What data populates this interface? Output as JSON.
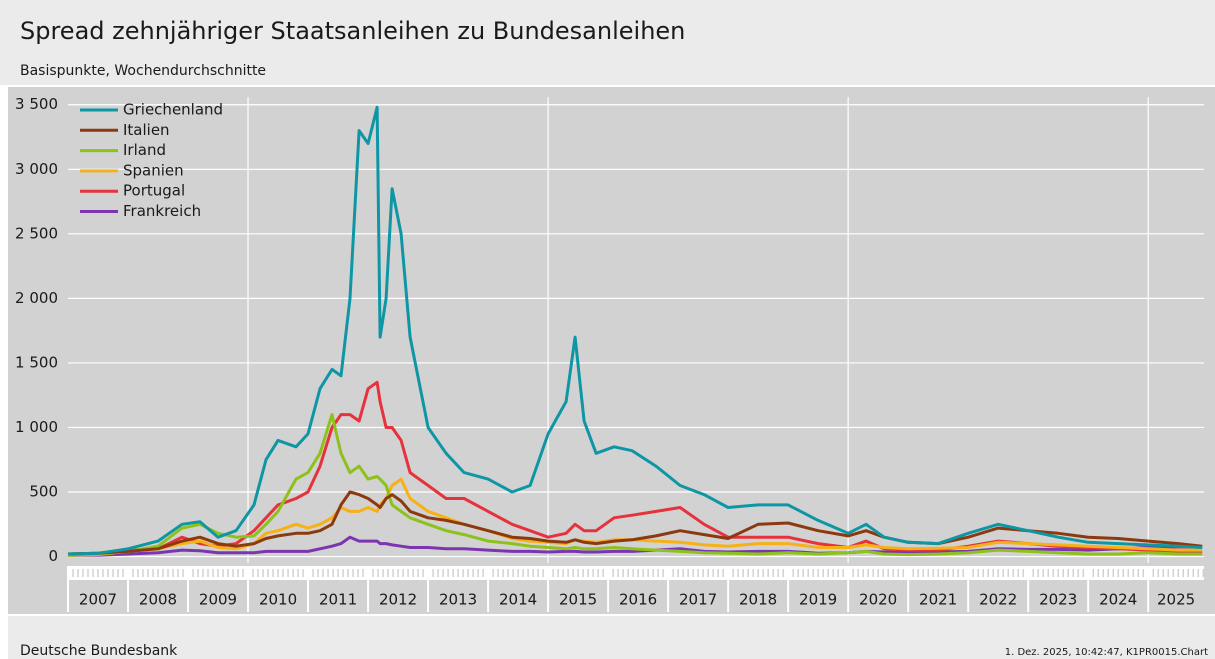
{
  "chart_data": {
    "type": "line",
    "title": "Spread zehnjähriger Staatsanleihen zu Bundesanleihen",
    "subtitle": "Basispunkte, Wochendurchschnitte",
    "source": "Deutsche Bundesbank",
    "footnote": "1. Dez. 2025, 10:42:47, K1PR0015.Chart",
    "x": [
      2007.0,
      2007.5,
      2008.0,
      2008.5,
      2008.9,
      2009.2,
      2009.5,
      2009.8,
      2010.1,
      2010.3,
      2010.5,
      2010.8,
      2011.0,
      2011.2,
      2011.4,
      2011.55,
      2011.7,
      2011.85,
      2012.0,
      2012.15,
      2012.2,
      2012.3,
      2012.4,
      2012.55,
      2012.7,
      2013.0,
      2013.3,
      2013.6,
      2014.0,
      2014.4,
      2014.7,
      2015.0,
      2015.3,
      2015.45,
      2015.6,
      2015.8,
      2016.1,
      2016.4,
      2016.8,
      2017.2,
      2017.6,
      2018.0,
      2018.5,
      2019.0,
      2019.5,
      2020.0,
      2020.3,
      2020.6,
      2021.0,
      2021.5,
      2022.0,
      2022.5,
      2023.0,
      2023.5,
      2024.0,
      2024.5,
      2025.0,
      2025.5,
      2025.9
    ],
    "series": [
      {
        "name": "Griechenland",
        "color": "#0e96a5",
        "values": [
          20,
          25,
          60,
          120,
          250,
          270,
          150,
          200,
          400,
          750,
          900,
          850,
          950,
          1300,
          1450,
          1400,
          2000,
          3300,
          3200,
          3480,
          1700,
          2000,
          2850,
          2500,
          1700,
          1000,
          800,
          650,
          600,
          500,
          550,
          950,
          1200,
          1700,
          1050,
          800,
          850,
          820,
          700,
          550,
          480,
          380,
          400,
          400,
          280,
          180,
          250,
          150,
          110,
          100,
          180,
          250,
          200,
          150,
          110,
          100,
          90,
          80,
          70
        ]
      },
      {
        "name": "Italien",
        "color": "#8b3a0f",
        "values": [
          20,
          25,
          40,
          60,
          120,
          150,
          100,
          80,
          100,
          140,
          160,
          180,
          180,
          200,
          250,
          400,
          500,
          480,
          450,
          400,
          380,
          450,
          480,
          430,
          350,
          300,
          280,
          250,
          200,
          150,
          140,
          120,
          110,
          130,
          110,
          100,
          120,
          130,
          160,
          200,
          170,
          140,
          250,
          260,
          200,
          160,
          200,
          150,
          110,
          100,
          150,
          220,
          200,
          180,
          150,
          140,
          120,
          100,
          80
        ]
      },
      {
        "name": "Irland",
        "color": "#8cc21a",
        "values": [
          10,
          20,
          40,
          80,
          220,
          250,
          180,
          150,
          160,
          250,
          350,
          600,
          650,
          800,
          1100,
          800,
          650,
          700,
          600,
          620,
          600,
          550,
          400,
          350,
          300,
          250,
          200,
          170,
          120,
          100,
          80,
          70,
          60,
          70,
          60,
          60,
          70,
          60,
          50,
          40,
          30,
          25,
          20,
          30,
          20,
          30,
          40,
          20,
          15,
          20,
          30,
          50,
          40,
          30,
          20,
          20,
          30,
          20,
          20
        ]
      },
      {
        "name": "Spanien",
        "color": "#f7b116",
        "values": [
          10,
          15,
          40,
          60,
          100,
          120,
          70,
          60,
          100,
          180,
          200,
          250,
          220,
          250,
          300,
          380,
          350,
          350,
          380,
          350,
          400,
          450,
          550,
          600,
          450,
          350,
          300,
          250,
          200,
          140,
          120,
          110,
          100,
          130,
          120,
          110,
          130,
          130,
          120,
          110,
          90,
          80,
          100,
          100,
          70,
          70,
          90,
          70,
          60,
          65,
          70,
          110,
          100,
          90,
          80,
          70,
          60,
          50,
          50
        ]
      },
      {
        "name": "Portugal",
        "color": "#e6323c",
        "values": [
          20,
          25,
          50,
          60,
          150,
          100,
          80,
          100,
          200,
          300,
          400,
          450,
          500,
          700,
          1000,
          1100,
          1100,
          1050,
          1300,
          1350,
          1200,
          1000,
          1000,
          900,
          650,
          550,
          450,
          450,
          350,
          250,
          200,
          150,
          180,
          250,
          200,
          200,
          300,
          320,
          350,
          380,
          250,
          150,
          150,
          150,
          100,
          70,
          120,
          60,
          50,
          50,
          80,
          120,
          100,
          80,
          70,
          60,
          50,
          40,
          35
        ]
      },
      {
        "name": "Frankreich",
        "color": "#7b35b0",
        "values": [
          10,
          10,
          20,
          30,
          50,
          45,
          30,
          30,
          30,
          40,
          40,
          40,
          40,
          60,
          80,
          100,
          150,
          120,
          120,
          120,
          100,
          100,
          90,
          80,
          70,
          70,
          60,
          60,
          50,
          40,
          40,
          35,
          40,
          40,
          35,
          35,
          40,
          40,
          50,
          60,
          40,
          35,
          40,
          40,
          25,
          30,
          40,
          35,
          30,
          35,
          40,
          60,
          55,
          55,
          50,
          60,
          70,
          75,
          75
        ]
      }
    ],
    "xlim": [
      2007,
      2025.93
    ],
    "xticks": [
      2007,
      2008,
      2009,
      2010,
      2011,
      2012,
      2013,
      2014,
      2015,
      2016,
      2017,
      2018,
      2019,
      2020,
      2021,
      2022,
      2023,
      2024,
      2025
    ],
    "xgrid": [
      2010,
      2015,
      2020,
      2025
    ],
    "ylim": [
      -50,
      3560
    ],
    "yticks": [
      0,
      500,
      {
        "value": 1000,
        "label": "1 000"
      },
      {
        "value": 1500,
        "label": "1 500"
      },
      {
        "value": 2000,
        "label": "2 000"
      },
      {
        "value": 2500,
        "label": "2 500"
      },
      {
        "value": 3000,
        "label": "3 000"
      },
      {
        "value": 3500,
        "label": "3 500"
      }
    ],
    "grid": true,
    "legend": "top-left"
  }
}
